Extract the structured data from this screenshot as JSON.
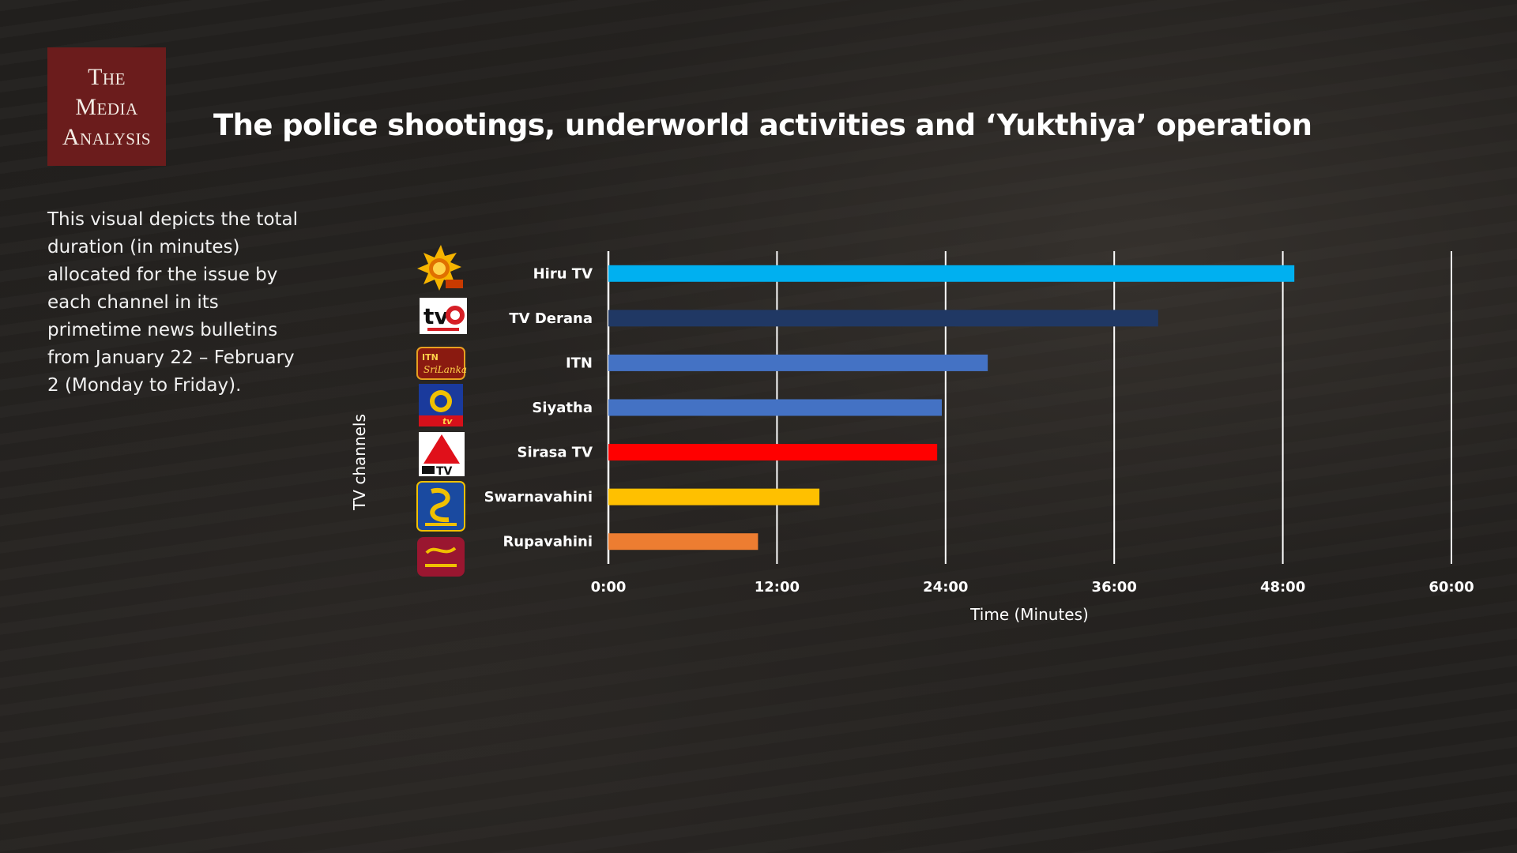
{
  "logo": {
    "line1": "The",
    "line2": "Media",
    "line3": "Analysis",
    "color": "#6b1c1c"
  },
  "title": "The police shootings, underworld activities and ‘Yukthiya’ operation",
  "description": "This visual depicts the total duration (in minutes) allocated for the issue by each channel in its primetime news bulletins from January 22 – February 2 (Monday to Friday).",
  "channel_logos": [
    {
      "channel": "Hiru TV",
      "icon": "hiru-tv-logo-icon"
    },
    {
      "channel": "TV Derana",
      "icon": "tv-derana-logo-icon",
      "text": "tv"
    },
    {
      "channel": "ITN",
      "icon": "itn-logo-icon",
      "text": "ITN Sri Lanka"
    },
    {
      "channel": "Siyatha",
      "icon": "siyatha-tv-logo-icon",
      "text": "tv"
    },
    {
      "channel": "Sirasa TV",
      "icon": "sirasa-tv-logo-icon",
      "text": "TV"
    },
    {
      "channel": "Swarnavahini",
      "icon": "swarnavahini-logo-icon"
    },
    {
      "channel": "Rupavahini",
      "icon": "rupavahini-logo-icon"
    }
  ],
  "chart_data": {
    "type": "bar",
    "orientation": "horizontal",
    "categories": [
      "Hiru TV",
      "TV Derana",
      "ITN",
      "Siyatha",
      "Sirasa TV",
      "Swarnavahini",
      "Rupavahini"
    ],
    "values": [
      "48:49",
      "39:08",
      "27:00",
      "23:44",
      "23:24",
      "15:01",
      "10:39"
    ],
    "values_minutes": [
      48.82,
      39.13,
      27.0,
      23.73,
      23.4,
      15.02,
      10.65
    ],
    "colors": [
      "#00b0f0",
      "#203864",
      "#4472c4",
      "#4472c4",
      "#ff0000",
      "#ffc000",
      "#ed7d31"
    ],
    "xlabel": "Time (Minutes)",
    "ylabel": "TV channels",
    "xlim": [
      0,
      60
    ],
    "xticks": [
      0,
      12,
      24,
      36,
      48,
      60
    ],
    "xtick_labels": [
      "0:00",
      "12:00",
      "24:00",
      "36:00",
      "48:00",
      "60:00"
    ],
    "grid": "vertical",
    "gridline_color": "#ffffff"
  }
}
